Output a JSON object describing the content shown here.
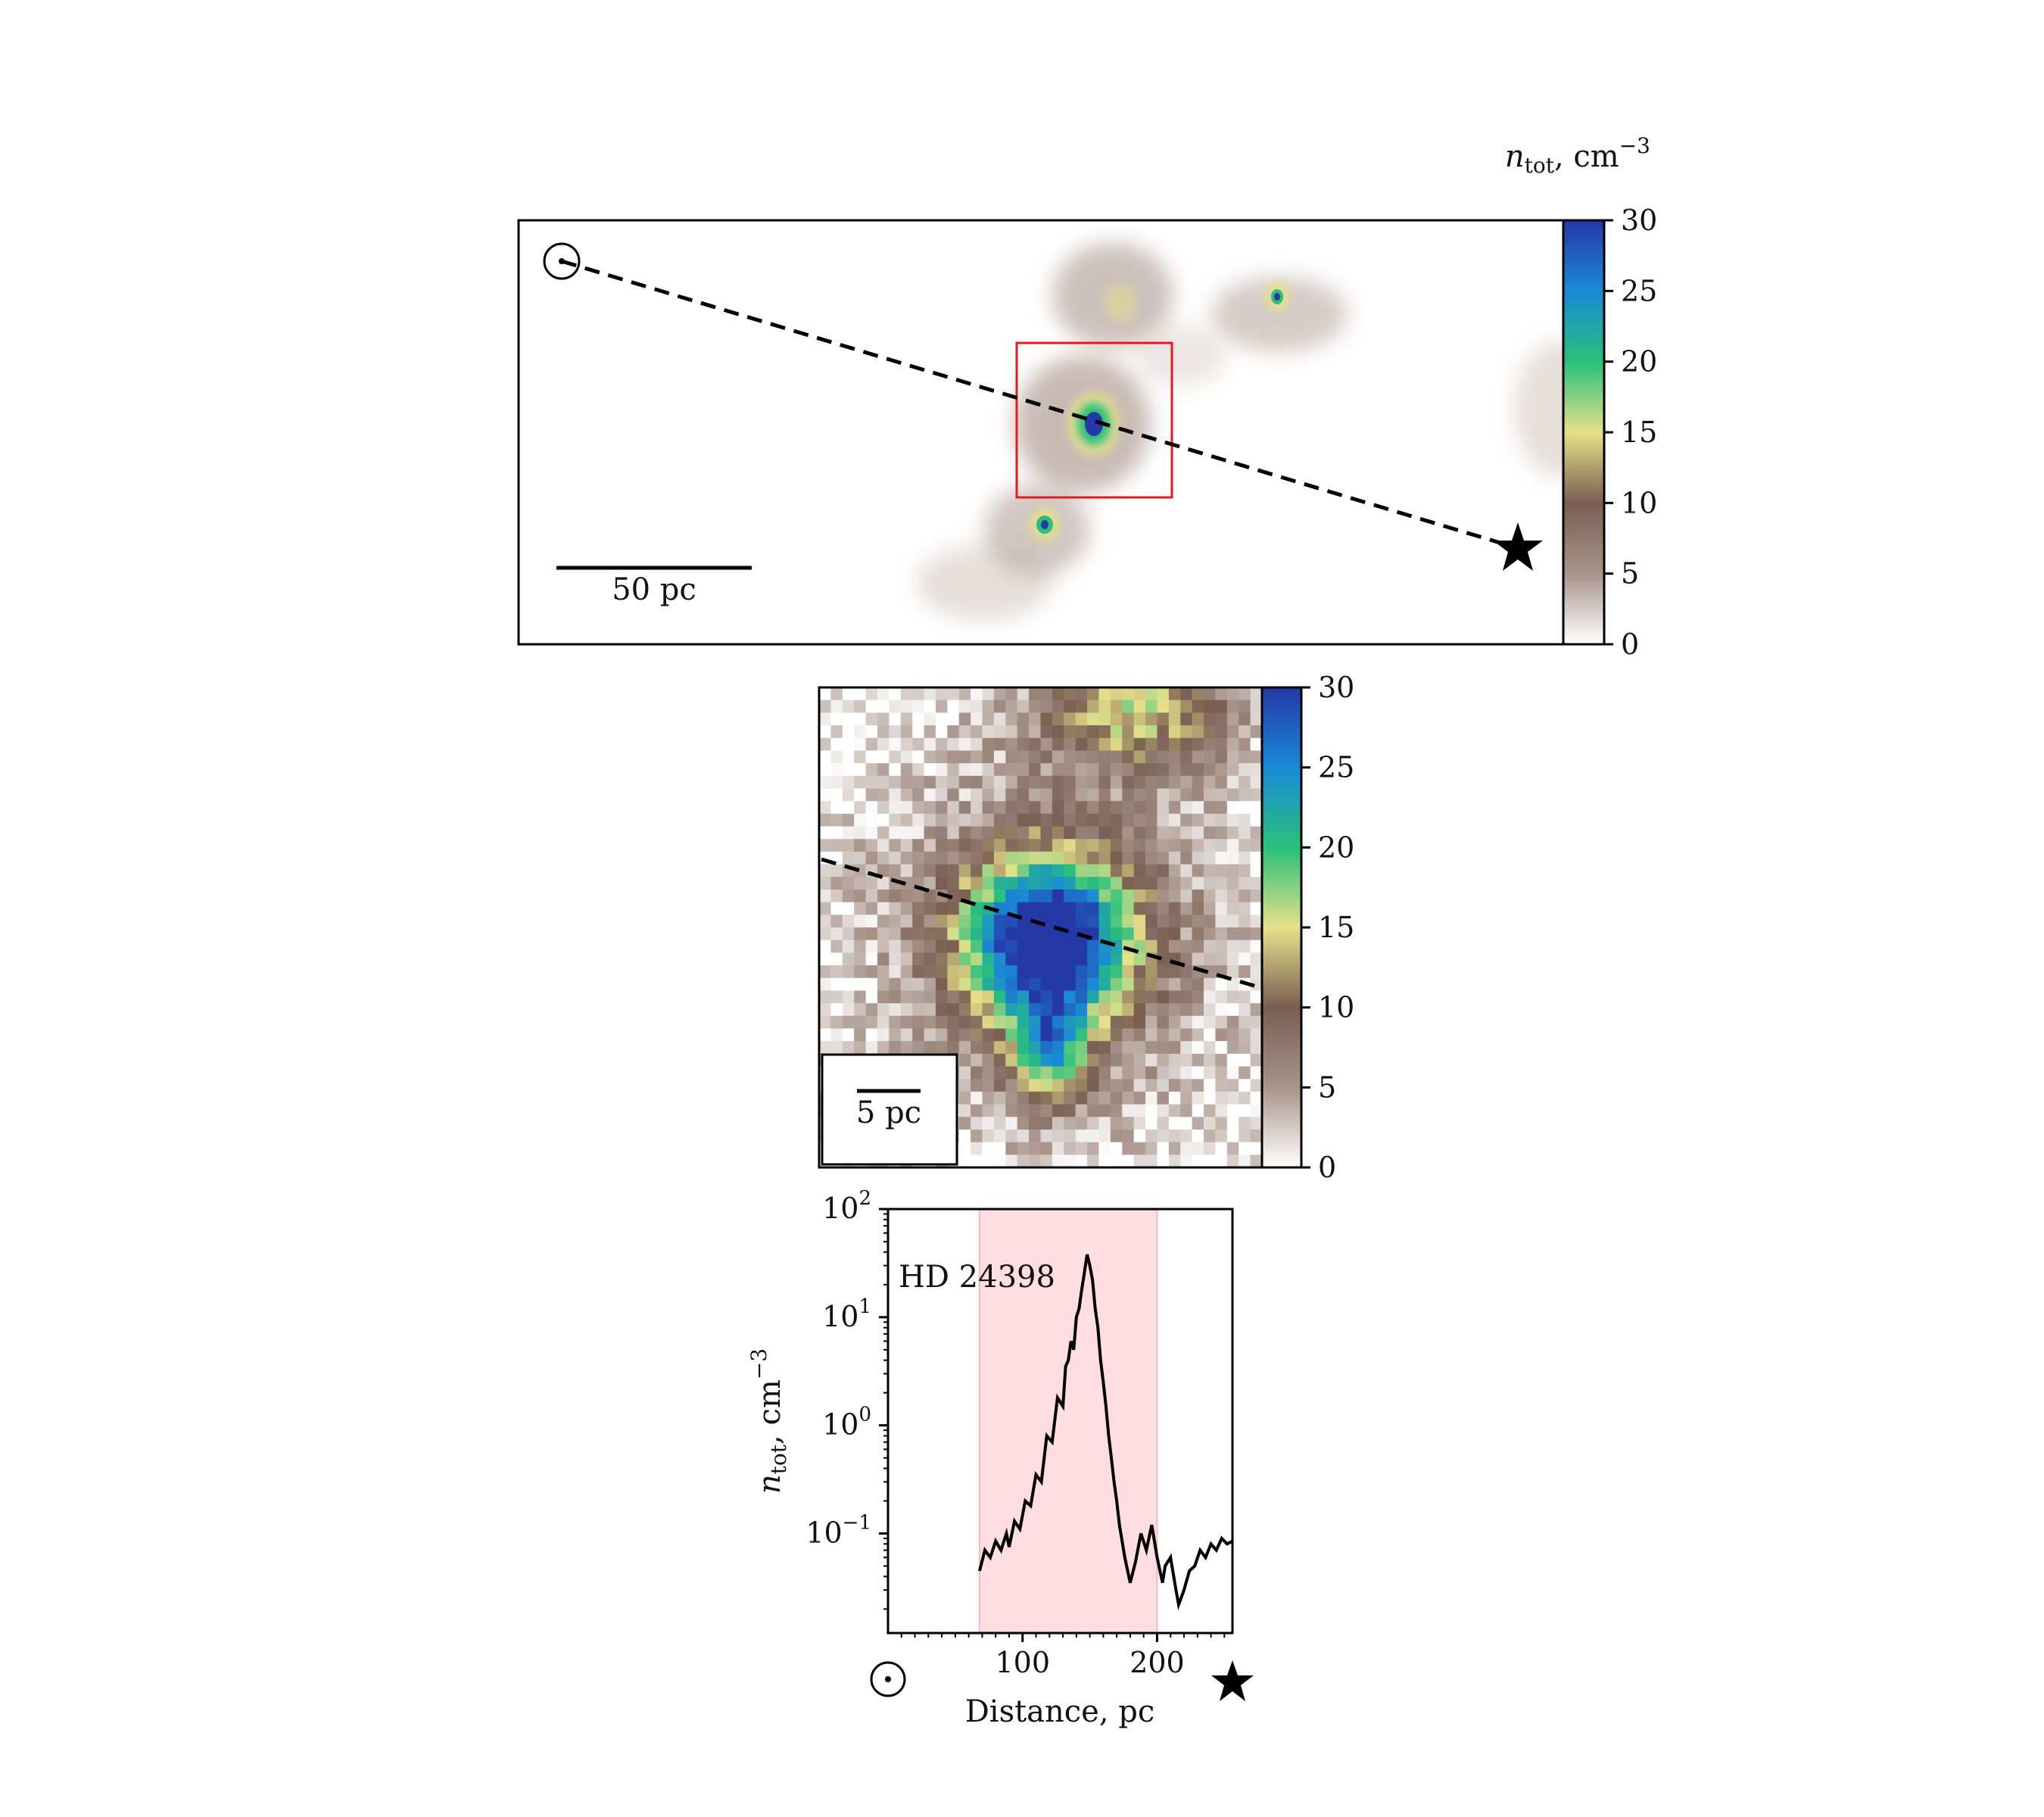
{
  "colorbar": {
    "label": "n_tot, cm^-3",
    "label_main": "n",
    "label_sub": "tot",
    "label_rest": ", cm",
    "label_exp": "−3",
    "ticks": [
      "0",
      "5",
      "10",
      "15",
      "20",
      "25",
      "30"
    ],
    "range": [
      0,
      30
    ],
    "colormap": [
      "#ffffff",
      "#a8948a",
      "#7a5e52",
      "#e6e08a",
      "#29c07a",
      "#1a8ad6",
      "#2538a8"
    ]
  },
  "panel_top": {
    "scale_bar_label": "50 pc",
    "sun_symbol": "sun-symbol",
    "star_symbol": "star-symbol",
    "zoom_box_color": "#e41a1c",
    "line_style": "dashed"
  },
  "panel_zoom": {
    "scale_bar_label": "5 pc",
    "line_style": "dashed"
  },
  "chart_data": {
    "type": "line",
    "annotation": "HD 24398",
    "xlabel": "Distance, pc",
    "ylabel": "n_tot, cm^-3",
    "ylabel_main": "n",
    "ylabel_sub": "tot",
    "ylabel_rest": ", cm",
    "ylabel_exp": "−3",
    "xlim": [
      0,
      256
    ],
    "ylim": [
      0.012,
      100
    ],
    "yscale": "log",
    "x_ticks": [
      "100",
      "200"
    ],
    "x_tick_values": [
      100,
      200
    ],
    "y_tick_values": [
      0.1,
      1,
      10,
      100
    ],
    "y_tick_bases": [
      "10",
      "10",
      "10",
      "10"
    ],
    "y_tick_exps": [
      "−1",
      "0",
      "1",
      "2"
    ],
    "highlight_span": [
      68,
      200
    ],
    "highlight_color": "#ffdde1",
    "grid": false,
    "series": [
      {
        "x": [
          68,
          72,
          76,
          80,
          84,
          88,
          90,
          94,
          98,
          102,
          106,
          110,
          114,
          118,
          122,
          126,
          130,
          132,
          134,
          136,
          138,
          140,
          142,
          144,
          146,
          148,
          150,
          152,
          154,
          156,
          158,
          160,
          162,
          164,
          166,
          168,
          170,
          172,
          176,
          180,
          184,
          188,
          192,
          196,
          200,
          204,
          206,
          210,
          214,
          216,
          220,
          224,
          228,
          232,
          236,
          240,
          244,
          248,
          252,
          256
        ],
        "y": [
          0.045,
          0.07,
          0.06,
          0.085,
          0.07,
          0.1,
          0.075,
          0.13,
          0.11,
          0.2,
          0.18,
          0.35,
          0.3,
          0.8,
          0.7,
          1.8,
          1.5,
          3.5,
          4,
          6,
          5,
          10,
          12,
          18,
          26,
          38,
          30,
          22,
          12,
          8,
          4,
          2.5,
          1.5,
          0.8,
          0.5,
          0.3,
          0.2,
          0.12,
          0.06,
          0.035,
          0.055,
          0.1,
          0.07,
          0.12,
          0.06,
          0.035,
          0.05,
          0.06,
          0.03,
          0.022,
          0.03,
          0.045,
          0.05,
          0.07,
          0.06,
          0.08,
          0.07,
          0.09,
          0.08,
          0.085
        ],
        "color": "#000000"
      }
    ]
  }
}
